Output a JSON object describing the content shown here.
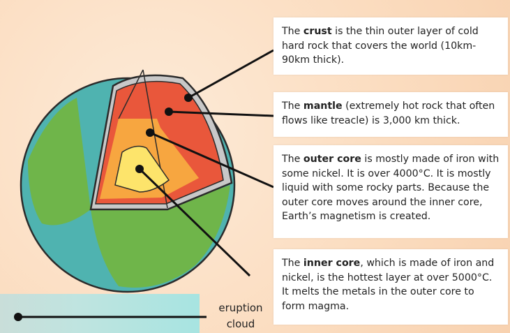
{
  "callouts": [
    {
      "lead": "The ",
      "term": "crust",
      "text": " is the thin outer layer of cold hard rock that covers the world (10km-90km thick)."
    },
    {
      "lead": "The ",
      "term": "mantle",
      "text": " (extremely hot rock that often flows like treacle) is 3,000 km thick."
    },
    {
      "lead": "The ",
      "term": "outer core",
      "text": " is mostly made of iron with some nickel.  It is over 4000°C. It is mostly liquid with some rocky parts. Because the outer core moves around the inner core, Earth’s magnetism is created."
    },
    {
      "lead": "The ",
      "term": "inner core",
      "text": ", which is made of iron and nickel, is the hottest layer at over 5000°C. It melts the metals in the outer core to form magma."
    }
  ],
  "label": {
    "line1": "eruption",
    "line2": "cloud"
  }
}
